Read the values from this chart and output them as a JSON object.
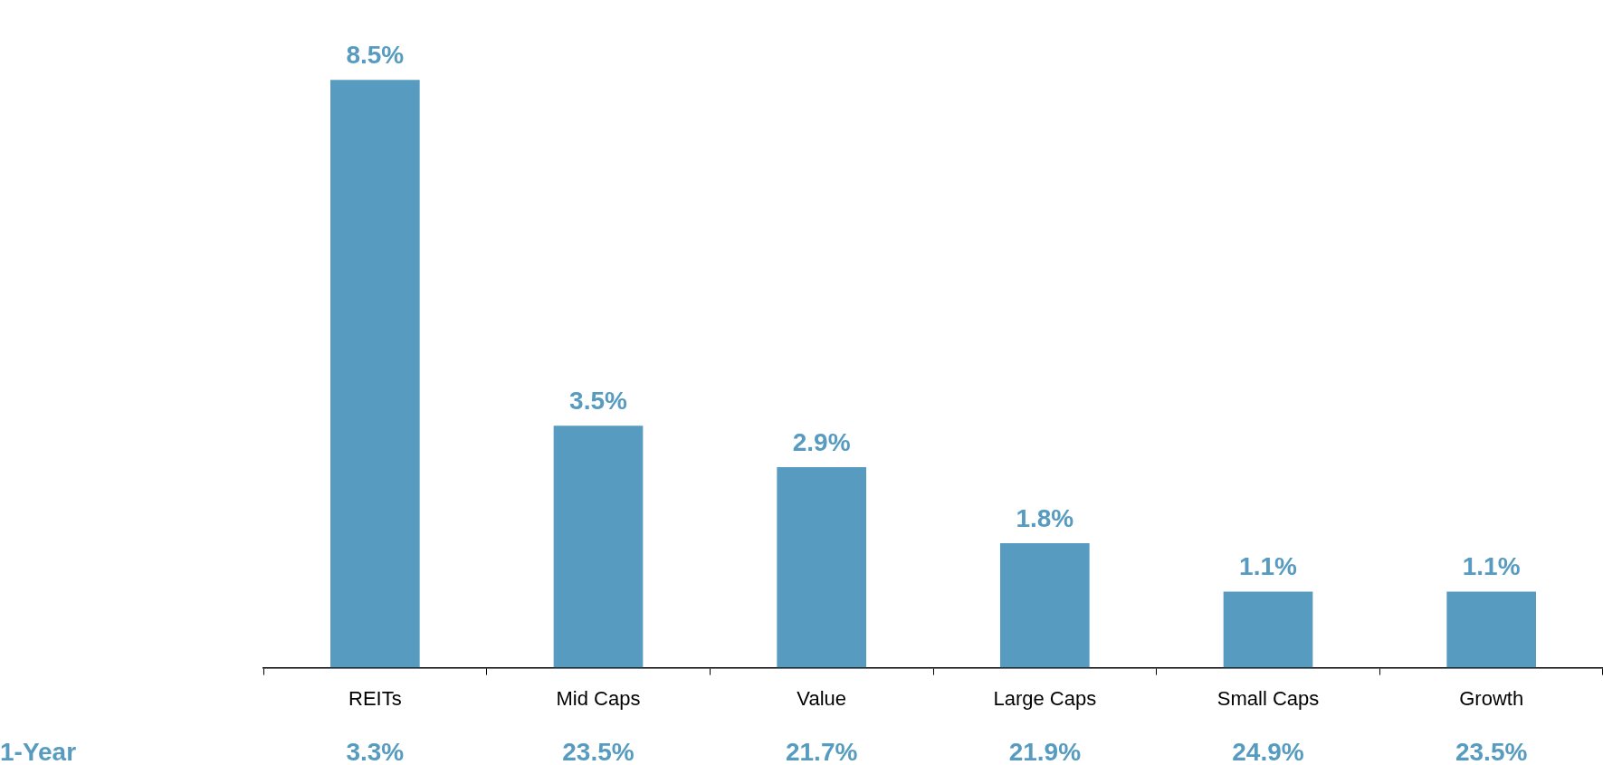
{
  "chart_data": {
    "type": "bar",
    "categories": [
      "REITs",
      "Mid Caps",
      "Value",
      "Large Caps",
      "Small Caps",
      "Growth"
    ],
    "values": [
      8.5,
      3.5,
      2.9,
      1.8,
      1.1,
      1.1
    ],
    "value_labels": [
      "8.5%",
      "3.5%",
      "2.9%",
      "1.8%",
      "1.1%",
      "1.1%"
    ],
    "color": "#579cc0",
    "tick_labels": "x",
    "grid": false,
    "legend": false,
    "annotations": [
      "1-Year",
      "3.3%",
      "23.5%",
      "21.7%",
      "21.9%",
      "24.9%",
      "23.5%"
    ]
  }
}
